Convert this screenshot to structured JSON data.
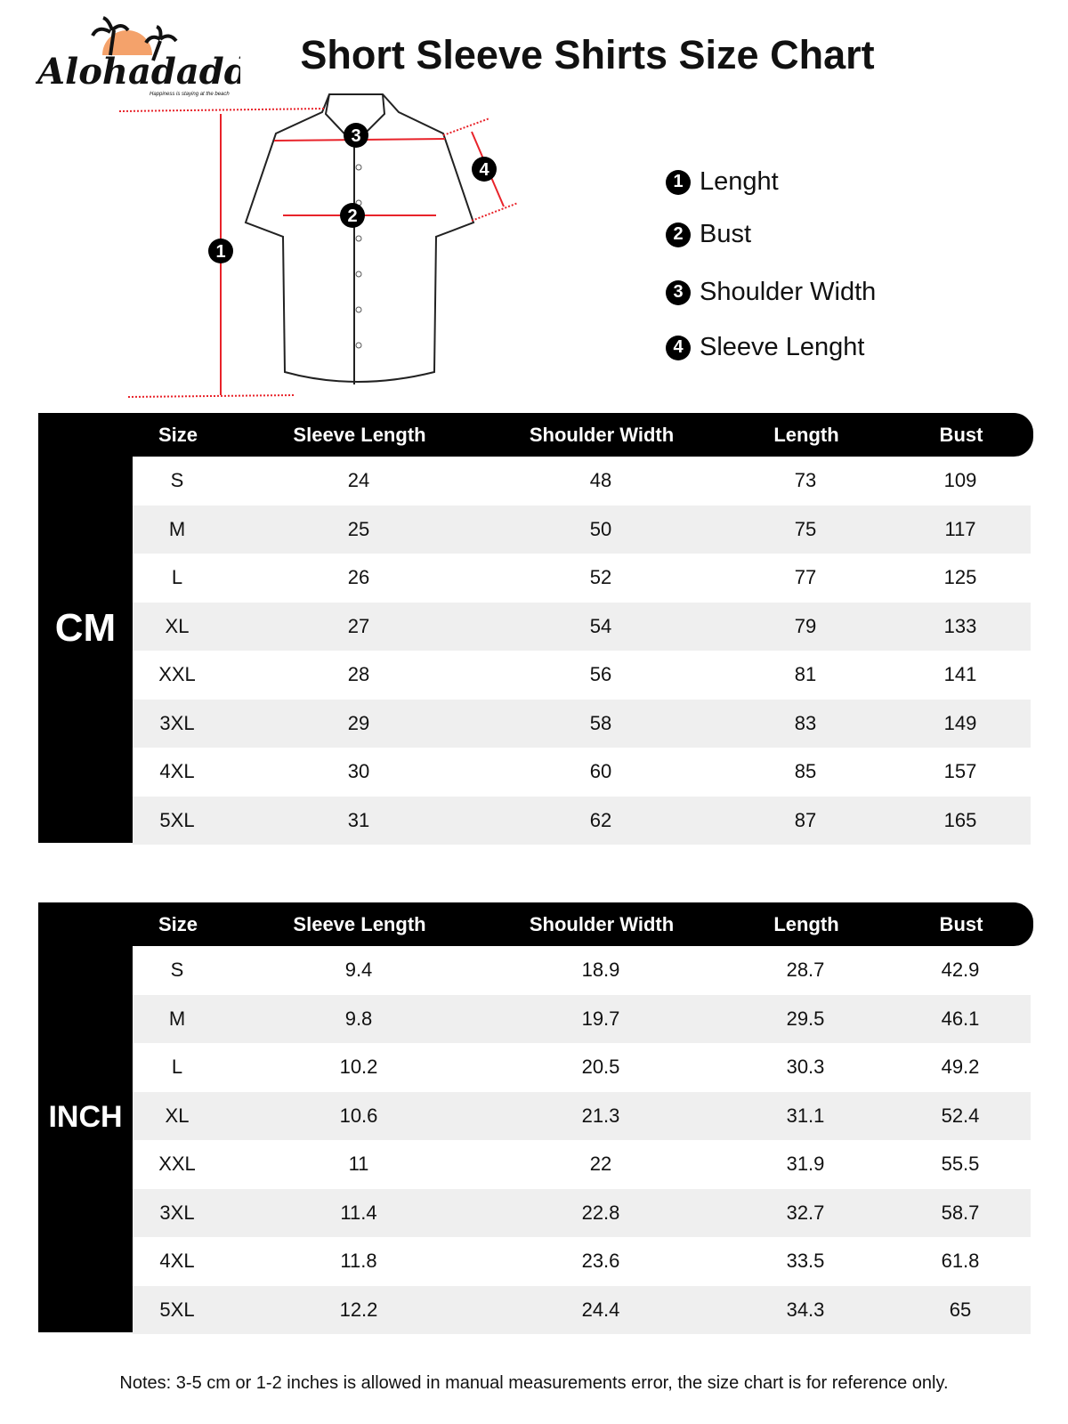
{
  "logo": {
    "brand": "Alohadaddy",
    "tagline": "Happiness is staying at the beach",
    "colors": {
      "sun": "#f4a26b",
      "palm": "#111111"
    }
  },
  "title": "Short Sleeve Shirts Size Chart",
  "diagram": {
    "markers": [
      "1",
      "2",
      "3",
      "4"
    ],
    "line_color": "#e8232a"
  },
  "legend": [
    {
      "num": "1",
      "label": "Lenght"
    },
    {
      "num": "2",
      "label": "Bust"
    },
    {
      "num": "3",
      "label": "Shoulder Width"
    },
    {
      "num": "4",
      "label": "Sleeve Lenght"
    }
  ],
  "columns": [
    "Size",
    "Sleeve Length",
    "Shoulder Width",
    "Length",
    "Bust"
  ],
  "tables": [
    {
      "unit": "CM",
      "rows": [
        [
          "S",
          "24",
          "48",
          "73",
          "109"
        ],
        [
          "M",
          "25",
          "50",
          "75",
          "117"
        ],
        [
          "L",
          "26",
          "52",
          "77",
          "125"
        ],
        [
          "XL",
          "27",
          "54",
          "79",
          "133"
        ],
        [
          "XXL",
          "28",
          "56",
          "81",
          "141"
        ],
        [
          "3XL",
          "29",
          "58",
          "83",
          "149"
        ],
        [
          "4XL",
          "30",
          "60",
          "85",
          "157"
        ],
        [
          "5XL",
          "31",
          "62",
          "87",
          "165"
        ]
      ]
    },
    {
      "unit": "INCH",
      "rows": [
        [
          "S",
          "9.4",
          "18.9",
          "28.7",
          "42.9"
        ],
        [
          "M",
          "9.8",
          "19.7",
          "29.5",
          "46.1"
        ],
        [
          "L",
          "10.2",
          "20.5",
          "30.3",
          "49.2"
        ],
        [
          "XL",
          "10.6",
          "21.3",
          "31.1",
          "52.4"
        ],
        [
          "XXL",
          "11",
          "22",
          "31.9",
          "55.5"
        ],
        [
          "3XL",
          "11.4",
          "22.8",
          "32.7",
          "58.7"
        ],
        [
          "4XL",
          "11.8",
          "23.6",
          "33.5",
          "61.8"
        ],
        [
          "5XL",
          "12.2",
          "24.4",
          "34.3",
          "65"
        ]
      ]
    }
  ],
  "notes": "Notes: 3-5 cm or 1-2 inches is allowed in manual measurements error, the size chart is for reference only."
}
